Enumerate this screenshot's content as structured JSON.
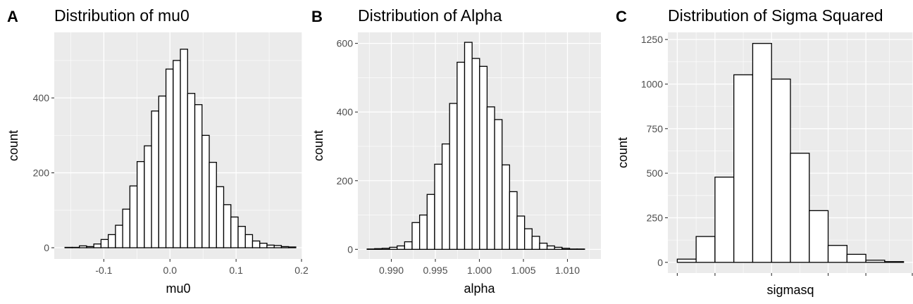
{
  "panels": [
    {
      "tag": "A",
      "chart_data": {
        "type": "bar",
        "title": "Distribution of mu0",
        "xlabel": "mu0",
        "ylabel": "count",
        "xlim": [
          -0.175,
          0.2
        ],
        "ylim": [
          -30,
          575
        ],
        "xticks": [
          -0.1,
          0.0,
          0.1,
          0.2
        ],
        "xtick_labels": [
          "-0.1",
          "0.0",
          "0.1",
          "0.2"
        ],
        "yticks": [
          0,
          200,
          400
        ],
        "ytick_labels": [
          "0",
          "200",
          "400"
        ],
        "grid": true,
        "bins_start": -0.1588,
        "bin_width": 0.01091,
        "values": [
          1,
          1,
          5,
          3,
          10,
          22,
          35,
          60,
          103,
          165,
          230,
          272,
          365,
          405,
          477,
          500,
          530,
          412,
          382,
          300,
          228,
          163,
          115,
          82,
          57,
          35,
          18,
          12,
          7,
          6,
          3,
          2
        ]
      }
    },
    {
      "tag": "B",
      "chart_data": {
        "type": "bar",
        "title": "Distribution of Alpha",
        "xlabel": "alpha",
        "ylabel": "count",
        "xlim": [
          0.9862,
          1.0138
        ],
        "ylim": [
          -28,
          632
        ],
        "xticks": [
          0.99,
          0.995,
          1.0,
          1.005,
          1.01
        ],
        "xtick_labels": [
          "0.990",
          "0.995",
          "1.000",
          "1.005",
          "1.010"
        ],
        "yticks": [
          0,
          200,
          400,
          600
        ],
        "ytick_labels": [
          "0",
          "200",
          "400",
          "600"
        ],
        "grid": true,
        "bins_start": 0.98725,
        "bin_width": 0.0008515,
        "values": [
          1,
          2,
          3,
          6,
          10,
          22,
          78,
          100,
          160,
          248,
          307,
          425,
          545,
          603,
          556,
          533,
          415,
          378,
          246,
          168,
          97,
          60,
          38,
          18,
          10,
          6,
          3,
          1,
          1
        ]
      }
    },
    {
      "tag": "C",
      "chart_data": {
        "type": "bar",
        "title": "Distribution of Sigma Squared",
        "xlabel": "sigmasq",
        "ylabel": "count",
        "xlim": [
          0,
          13
        ],
        "ylim": [
          -60,
          1290
        ],
        "yticks": [
          0,
          250,
          500,
          750,
          1000,
          1250
        ],
        "ytick_labels": [
          "0",
          "250",
          "500",
          "750",
          "1000",
          "1250"
        ],
        "grid": true,
        "bins_start": 0.5,
        "bin_width": 1,
        "values": [
          18,
          145,
          478,
          1052,
          1228,
          1028,
          612,
          290,
          95,
          45,
          12,
          4
        ]
      }
    }
  ]
}
